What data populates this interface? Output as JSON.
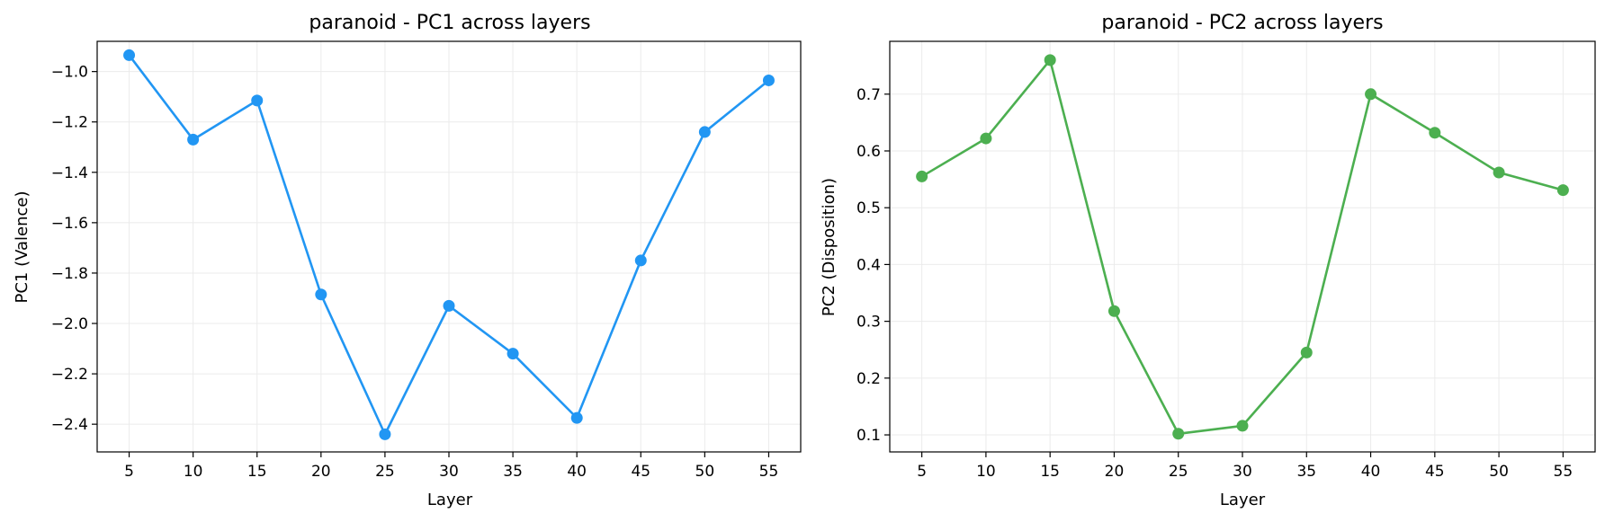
{
  "chart_data": [
    {
      "type": "line",
      "title": "paranoid - PC1 across layers",
      "xlabel": "Layer",
      "ylabel": "PC1 (Valence)",
      "x": [
        5,
        10,
        15,
        20,
        25,
        30,
        35,
        40,
        45,
        50,
        55
      ],
      "series": [
        {
          "values": [
            -0.935,
            -1.27,
            -1.115,
            -1.885,
            -2.44,
            -1.93,
            -2.12,
            -2.375,
            -1.75,
            -1.24,
            -1.035
          ],
          "color": "#2196F3"
        }
      ],
      "xticks": [
        "5",
        "10",
        "15",
        "20",
        "25",
        "30",
        "35",
        "40",
        "45",
        "50",
        "55"
      ],
      "yticks": [
        -2.4,
        -2.2,
        -2.0,
        -1.8,
        -1.6,
        -1.4,
        -1.2,
        -1.0
      ],
      "ytick_labels": [
        "−2.4",
        "−2.2",
        "−2.0",
        "−1.8",
        "−1.6",
        "−1.4",
        "−1.2",
        "−1.0"
      ],
      "xlim": [
        2.5,
        57.5
      ],
      "ylim": [
        -2.51,
        -0.88
      ],
      "grid": true
    },
    {
      "type": "line",
      "title": "paranoid - PC2 across layers",
      "xlabel": "Layer",
      "ylabel": "PC2 (Disposition)",
      "x": [
        5,
        10,
        15,
        20,
        25,
        30,
        35,
        40,
        45,
        50,
        55
      ],
      "series": [
        {
          "values": [
            0.555,
            0.622,
            0.76,
            0.318,
            0.102,
            0.116,
            0.245,
            0.7,
            0.632,
            0.562,
            0.531
          ],
          "color": "#4CAF50"
        }
      ],
      "xticks": [
        "5",
        "10",
        "15",
        "20",
        "25",
        "30",
        "35",
        "40",
        "45",
        "50",
        "55"
      ],
      "yticks": [
        0.1,
        0.2,
        0.3,
        0.4,
        0.5,
        0.6,
        0.7
      ],
      "ytick_labels": [
        "0.1",
        "0.2",
        "0.3",
        "0.4",
        "0.5",
        "0.6",
        "0.7"
      ],
      "xlim": [
        2.5,
        57.5
      ],
      "ylim": [
        0.07,
        0.793
      ],
      "grid": true
    }
  ]
}
